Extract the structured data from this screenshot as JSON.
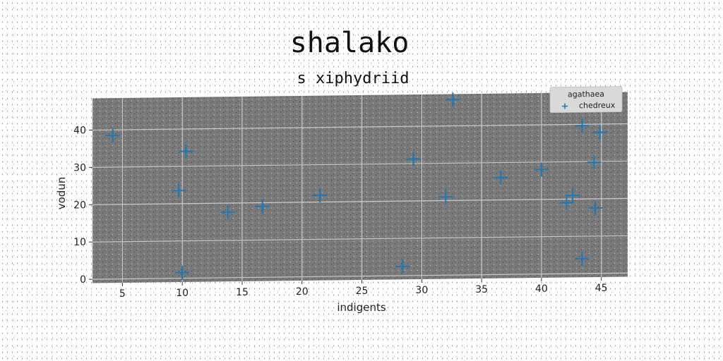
{
  "chart_data": {
    "type": "scatter",
    "title": "shalako",
    "subtitle": "s xiphydriid",
    "xlabel": "indigents",
    "ylabel": "vodun",
    "xlim": [
      2.5,
      47.2
    ],
    "ylim": [
      -1,
      48.5
    ],
    "xticks": [
      5,
      10,
      15,
      20,
      25,
      30,
      35,
      40,
      45
    ],
    "yticks": [
      0,
      10,
      20,
      30,
      40
    ],
    "grid": true,
    "legend": {
      "title": "agathaea",
      "position": "top-right"
    },
    "series": [
      {
        "name": "chedreux",
        "marker": "+",
        "color": "#1f77b4",
        "points": [
          [
            4.2,
            38.5
          ],
          [
            9.7,
            23.5
          ],
          [
            10.3,
            34
          ],
          [
            10.0,
            1.5
          ],
          [
            13.8,
            17.5
          ],
          [
            16.7,
            19
          ],
          [
            21.5,
            21.8
          ],
          [
            28.4,
            2.5
          ],
          [
            29.3,
            31.2
          ],
          [
            32.0,
            21
          ],
          [
            32.6,
            47
          ],
          [
            36.6,
            26
          ],
          [
            40.0,
            28
          ],
          [
            42.1,
            19
          ],
          [
            42.6,
            21
          ],
          [
            43.4,
            39.6
          ],
          [
            44.9,
            37.8
          ],
          [
            44.4,
            29.8
          ],
          [
            44.5,
            17.5
          ],
          [
            43.4,
            4
          ]
        ]
      }
    ]
  },
  "colors": {
    "plot_background": "#7a7a7a",
    "grid": "#c8c8c8",
    "marker": "#1f77b4"
  }
}
